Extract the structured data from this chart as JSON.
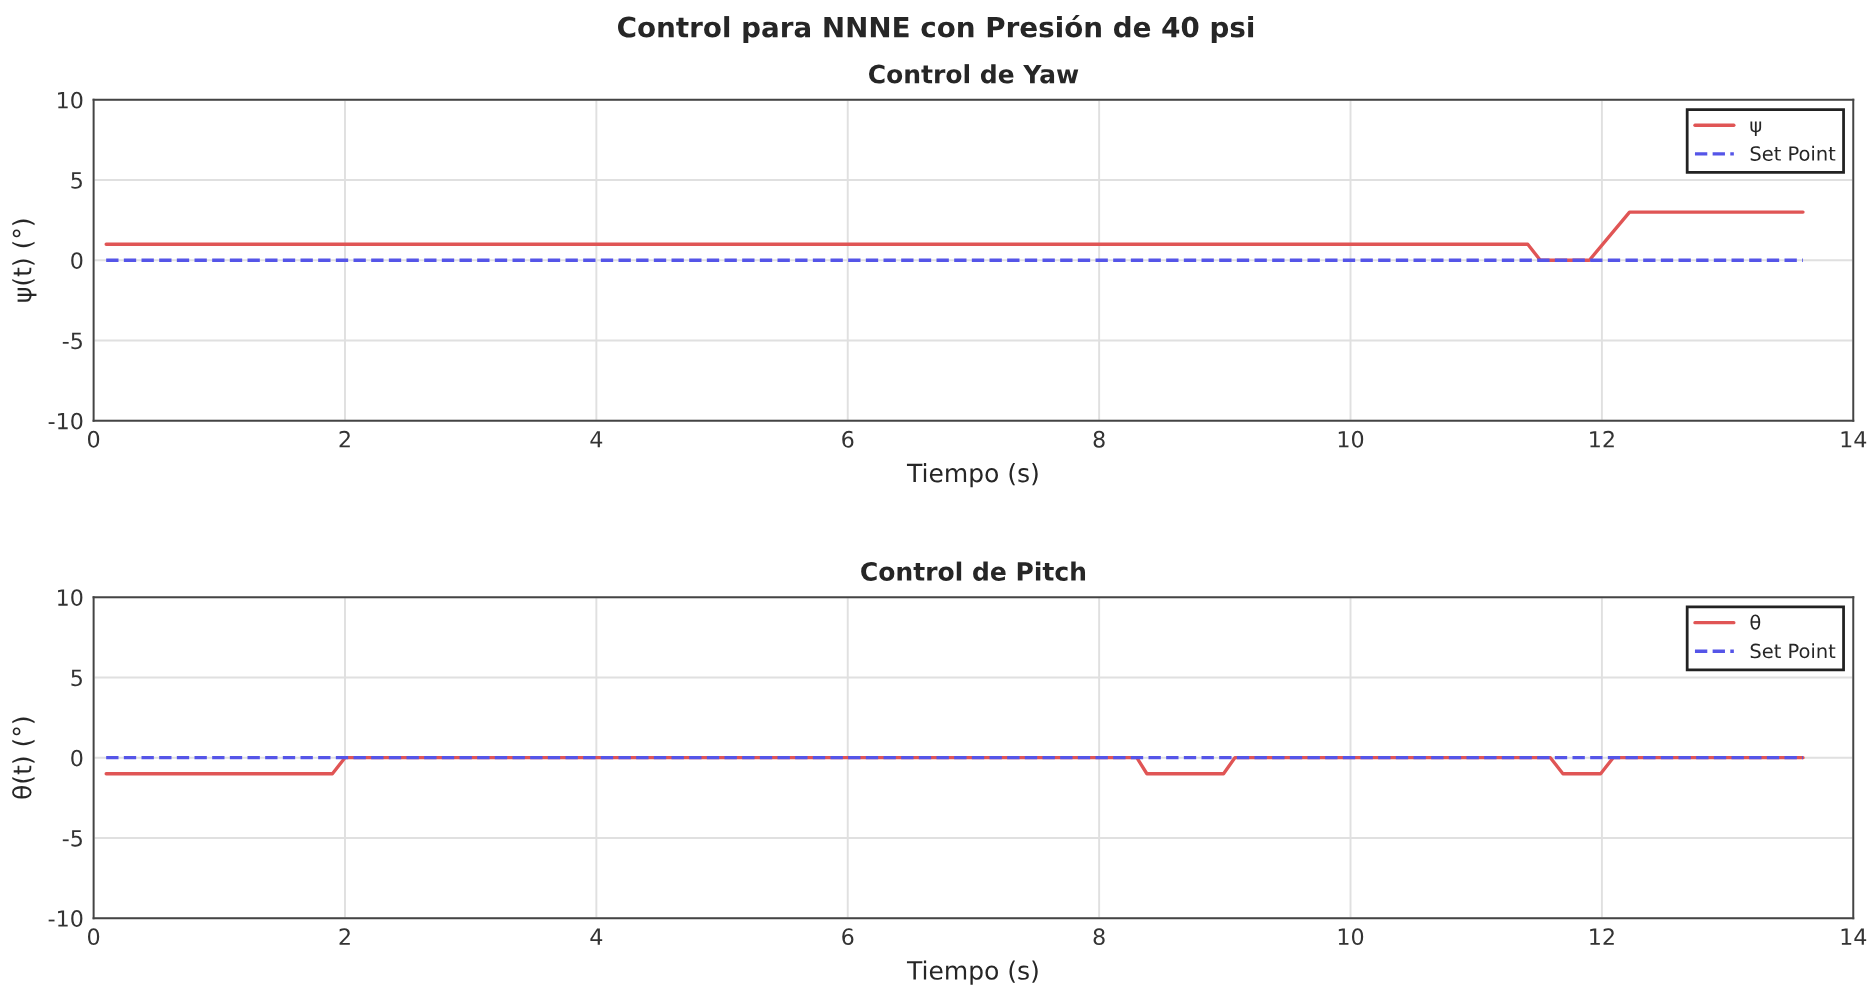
{
  "chart_data": [
    {
      "type": "line",
      "title": "Control para NNNE con Presión de 40 psi",
      "subtitle": "Control de Yaw",
      "xlabel": "Tiempo (s)",
      "ylabel": "ψ(t) (°)",
      "xlim": [
        0,
        14
      ],
      "xticks": [
        0,
        2,
        4,
        6,
        8,
        10,
        12,
        14
      ],
      "ylim": [
        -10,
        10
      ],
      "yticks": [
        -10,
        -5,
        0,
        5,
        10
      ],
      "grid": true,
      "legend": "top right",
      "series": [
        {
          "name": "ψ",
          "color": "#e05555",
          "line_style": "solid",
          "x": [
            0.1,
            11.41,
            11.51,
            11.9,
            12.22,
            13.6
          ],
          "values": [
            1,
            1,
            0,
            0,
            3,
            3
          ]
        },
        {
          "name": "Set Point",
          "color": "#5555e8",
          "line_style": "dashed",
          "x": [
            0.1,
            13.6
          ],
          "values": [
            0,
            0
          ]
        }
      ]
    },
    {
      "type": "line",
      "title": "Control de Pitch",
      "xlabel": "Tiempo (s)",
      "ylabel": "θ(t) (°)",
      "xlim": [
        0,
        14
      ],
      "xticks": [
        0,
        2,
        4,
        6,
        8,
        10,
        12,
        14
      ],
      "ylim": [
        -10,
        10
      ],
      "yticks": [
        -10,
        -5,
        0,
        5,
        10
      ],
      "grid": true,
      "legend": "top right",
      "series": [
        {
          "name": "θ",
          "color": "#e05555",
          "line_style": "solid",
          "x": [
            0.1,
            1.9,
            2.0,
            8.3,
            8.38,
            8.99,
            9.08,
            11.59,
            11.69,
            11.99,
            12.09,
            13.6
          ],
          "values": [
            -1,
            -1,
            0,
            0,
            -1,
            -1,
            0,
            0,
            -1,
            -1,
            0,
            0
          ]
        },
        {
          "name": "Set Point",
          "color": "#5555e8",
          "line_style": "dashed",
          "x": [
            0.1,
            13.6
          ],
          "values": [
            0,
            0
          ]
        }
      ]
    }
  ]
}
